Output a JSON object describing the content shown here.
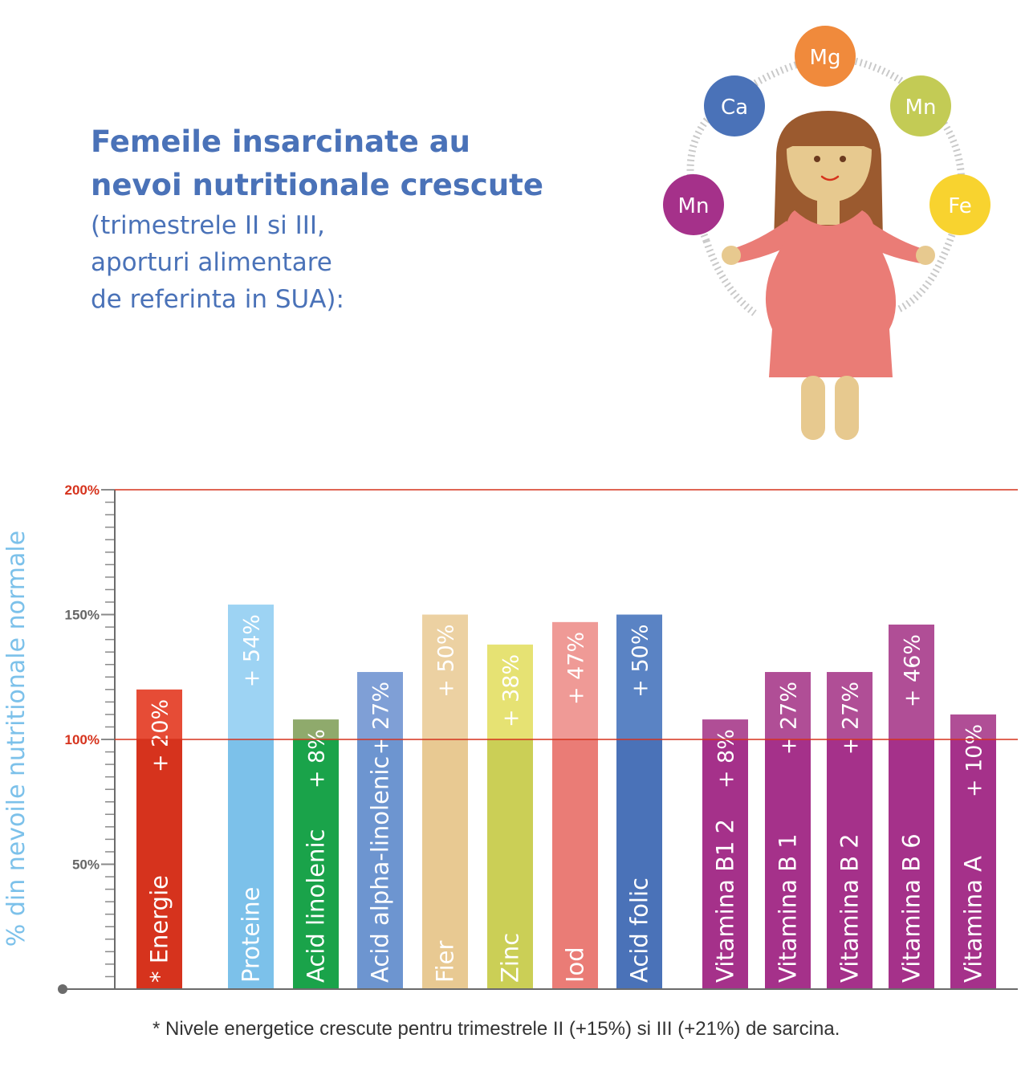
{
  "title": {
    "line1": "Femeile insarcinate au",
    "line2": "nevoi nutritionale crescute",
    "sub1": "(trimestrele II si III,",
    "sub2": "aporturi alimentare",
    "sub3": "de referinta in SUA):"
  },
  "illustration": {
    "bubbles": [
      {
        "label": "Mg",
        "color": "#f08a3c"
      },
      {
        "label": "Ca",
        "color": "#4a72b8"
      },
      {
        "label": "Mn",
        "color": "#c3cb55"
      },
      {
        "label": "Mn",
        "color": "#a5318a"
      },
      {
        "label": "Fe",
        "color": "#f8d32f"
      }
    ]
  },
  "chart_data": {
    "type": "bar",
    "ylabel": "% din nevoile nutritionale normale",
    "y_ticks": [
      "200%",
      "150%",
      "100%",
      "50%"
    ],
    "reference_lines": [
      100,
      200
    ],
    "ylim": [
      0,
      200
    ],
    "categories": [
      "* Energie",
      "Proteine",
      "Acid linolenic",
      "Acid alpha-linolenic",
      "Fier",
      "Zinc",
      "Iod",
      "Acid folic",
      "Vitamina B1 2",
      "Vitamina B 1",
      "Vitamina B 2",
      "Vitamina B 6",
      "Vitamina  A"
    ],
    "values": [
      120,
      154,
      108,
      127,
      150,
      138,
      147,
      150,
      108,
      127,
      127,
      146,
      110
    ],
    "increase_labels": [
      "+ 20%",
      "+ 54%",
      "+ 8%",
      "+ 27%",
      "+ 50%",
      "+ 38%",
      "+ 47%",
      "+ 50%",
      "+ 8%",
      "+ 27%",
      "+ 27%",
      "+ 46%",
      "+ 10%"
    ],
    "colors": [
      "#d6331d",
      "#7cc1ea",
      "#1aa34a",
      "#6d95d0",
      "#e8c992",
      "#cbcf56",
      "#ea7c76",
      "#4a72b8",
      "#a5318a",
      "#a5318a",
      "#a5318a",
      "#a5318a",
      "#a5318a"
    ],
    "top_colors": [
      "#e64c36",
      "#9dd3f3",
      "#8faa6c",
      "#7f9fd6",
      "#ecd1a2",
      "#e6e273",
      "#ef9a96",
      "#5a83c4",
      "#b04e96",
      "#b04e96",
      "#b04e96",
      "#b04e96",
      "#b04e96"
    ]
  },
  "footnote": "* Nivele energetice crescute pentru trimestrele II (+15%) si III (+21%) de sarcina.",
  "colors": {
    "title": "#4a72b8",
    "axis_label": "#7cc1ea",
    "reference_line": "#d6331d",
    "axis": "#6b6b6b"
  }
}
